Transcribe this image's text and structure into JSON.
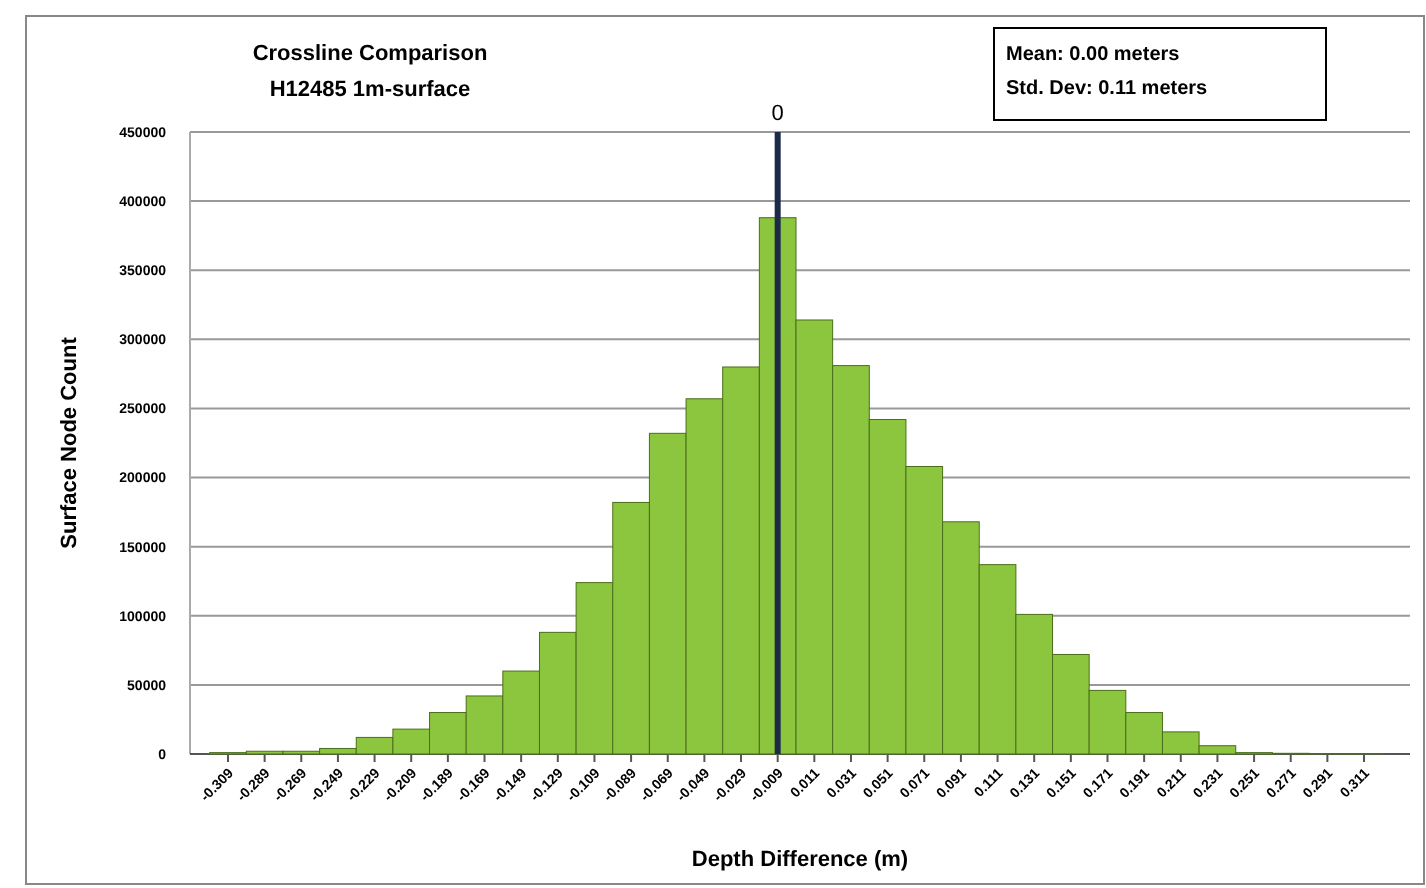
{
  "chart_data": {
    "type": "bar",
    "title": "Crossline Comparison",
    "subtitle": "H12485 1m-surface",
    "xlabel": "Depth Difference (m)",
    "ylabel": "Surface Node Count",
    "categories": [
      "-0.309",
      "-0.289",
      "-0.269",
      "-0.249",
      "-0.229",
      "-0.209",
      "-0.189",
      "-0.169",
      "-0.149",
      "-0.129",
      "-0.109",
      "-0.089",
      "-0.069",
      "-0.049",
      "-0.029",
      "-0.009",
      "0.011",
      "0.031",
      "0.051",
      "0.071",
      "0.091",
      "0.111",
      "0.131",
      "0.151",
      "0.171",
      "0.191",
      "0.211",
      "0.231",
      "0.251",
      "0.271",
      "0.291",
      "0.311"
    ],
    "values": [
      1000,
      2000,
      2000,
      4000,
      12000,
      18000,
      30000,
      42000,
      60000,
      88000,
      124000,
      182000,
      232000,
      257000,
      280000,
      388000,
      314000,
      281000,
      242000,
      208000,
      168000,
      137000,
      101000,
      72000,
      46000,
      30000,
      16000,
      6000,
      1000,
      500,
      300,
      200
    ],
    "color": "#8cc63e",
    "ylim": [
      0,
      450000
    ],
    "yticks": [
      0,
      50000,
      100000,
      150000,
      200000,
      250000,
      300000,
      350000,
      400000,
      450000
    ],
    "grid": "y",
    "ref_lines": [
      {
        "axis": "x",
        "value": "-0.009",
        "label": "0",
        "color": "#1b2a48"
      }
    ],
    "annotations": [
      "Mean:  0.00 meters",
      "Std. Dev:  0.11 meters"
    ]
  }
}
